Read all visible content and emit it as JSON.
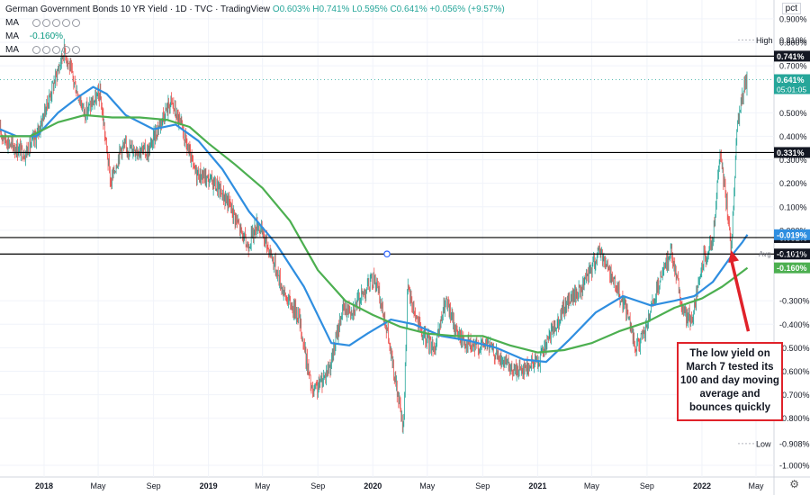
{
  "header": {
    "title": "German Government Bonds 10 YR Yield · 1D · TVC · TradingView",
    "ohlc": "O0.603% H0.741% L0.595% C0.641% +0.056% (+9.57%)",
    "ma1_label": "MA",
    "ma1_value": "",
    "ma2_label": "MA",
    "ma2_value": "-0.160%",
    "ma3_label": "MA",
    "ma3_value": ""
  },
  "axis_unit": "pct",
  "annotation": "The low yield on March 7 tested its 100 and  day moving average and bounces quickly",
  "colors": {
    "up": "#26a69a",
    "down": "#ef5350",
    "ma_blue": "#2f8ee0",
    "ma_green": "#4caf50",
    "level_line": "#000000",
    "arrow": "#e0222a"
  },
  "chart_data": {
    "type": "line",
    "title": "German Government Bonds 10 YR Yield",
    "ylabel": "pct",
    "ylim": [
      -1.05,
      0.98
    ],
    "y_ticks": [
      0.9,
      0.8,
      0.7,
      0.5,
      0.4,
      0.3,
      0.2,
      0.1,
      0.0,
      -0.3,
      -0.4,
      -0.5,
      -0.6,
      -0.7,
      -0.8,
      -1.0
    ],
    "y_tick_labels": [
      "0.900%",
      "0.800%",
      "0.700%",
      "0.500%",
      "0.400%",
      "0.300%",
      "0.200%",
      "0.100%",
      "0.000%",
      "-0.300%",
      "-0.400%",
      "-0.500%",
      "-0.600%",
      "-0.700%",
      "-0.800%",
      "-1.000%"
    ],
    "x_ticks": [
      {
        "label": "2018",
        "date": "2018-01-01",
        "bold": true
      },
      {
        "label": "May",
        "date": "2018-05-01"
      },
      {
        "label": "Sep",
        "date": "2018-09-01"
      },
      {
        "label": "2019",
        "date": "2019-01-01",
        "bold": true
      },
      {
        "label": "May",
        "date": "2019-05-01"
      },
      {
        "label": "Sep",
        "date": "2019-09-01"
      },
      {
        "label": "2020",
        "date": "2020-01-01",
        "bold": true
      },
      {
        "label": "May",
        "date": "2020-05-01"
      },
      {
        "label": "Sep",
        "date": "2020-09-01"
      },
      {
        "label": "2021",
        "date": "2021-01-01",
        "bold": true
      },
      {
        "label": "May",
        "date": "2021-05-01"
      },
      {
        "label": "Sep",
        "date": "2021-09-01"
      },
      {
        "label": "2022",
        "date": "2022-01-01",
        "bold": true
      },
      {
        "label": "May",
        "date": "2022-05-01"
      }
    ],
    "x_range": [
      "2017-09-25",
      "2022-06-10"
    ],
    "price_path": [
      [
        "2017-09-25",
        0.42
      ],
      [
        "2017-10-20",
        0.36
      ],
      [
        "2017-11-20",
        0.33
      ],
      [
        "2017-12-15",
        0.4
      ],
      [
        "2018-01-10",
        0.55
      ],
      [
        "2018-02-15",
        0.77
      ],
      [
        "2018-03-10",
        0.62
      ],
      [
        "2018-04-01",
        0.5
      ],
      [
        "2018-05-05",
        0.58
      ],
      [
        "2018-05-29",
        0.2
      ],
      [
        "2018-06-20",
        0.35
      ],
      [
        "2018-07-20",
        0.35
      ],
      [
        "2018-08-20",
        0.33
      ],
      [
        "2018-09-20",
        0.48
      ],
      [
        "2018-10-10",
        0.55
      ],
      [
        "2018-11-01",
        0.44
      ],
      [
        "2018-12-01",
        0.25
      ],
      [
        "2019-01-15",
        0.2
      ],
      [
        "2019-02-20",
        0.1
      ],
      [
        "2019-03-28",
        -0.07
      ],
      [
        "2019-04-20",
        0.03
      ],
      [
        "2019-05-20",
        -0.1
      ],
      [
        "2019-06-20",
        -0.28
      ],
      [
        "2019-07-20",
        -0.36
      ],
      [
        "2019-08-20",
        -0.7
      ],
      [
        "2019-09-10",
        -0.64
      ],
      [
        "2019-10-01",
        -0.56
      ],
      [
        "2019-10-25",
        -0.34
      ],
      [
        "2019-11-20",
        -0.33
      ],
      [
        "2019-12-20",
        -0.24
      ],
      [
        "2020-01-05",
        -0.2
      ],
      [
        "2020-01-30",
        -0.4
      ],
      [
        "2020-03-09",
        -0.85
      ],
      [
        "2020-03-18",
        -0.25
      ],
      [
        "2020-04-20",
        -0.45
      ],
      [
        "2020-05-20",
        -0.5
      ],
      [
        "2020-06-10",
        -0.3
      ],
      [
        "2020-07-10",
        -0.45
      ],
      [
        "2020-08-10",
        -0.5
      ],
      [
        "2020-09-10",
        -0.48
      ],
      [
        "2020-10-10",
        -0.55
      ],
      [
        "2020-11-05",
        -0.6
      ],
      [
        "2020-12-10",
        -0.58
      ],
      [
        "2021-01-05",
        -0.55
      ],
      [
        "2021-02-10",
        -0.4
      ],
      [
        "2021-03-10",
        -0.3
      ],
      [
        "2021-04-10",
        -0.25
      ],
      [
        "2021-05-19",
        -0.08
      ],
      [
        "2021-06-20",
        -0.22
      ],
      [
        "2021-07-20",
        -0.35
      ],
      [
        "2021-08-05",
        -0.5
      ],
      [
        "2021-08-25",
        -0.45
      ],
      [
        "2021-09-20",
        -0.28
      ],
      [
        "2021-10-25",
        -0.08
      ],
      [
        "2021-11-20",
        -0.35
      ],
      [
        "2021-12-10",
        -0.38
      ],
      [
        "2022-01-05",
        -0.12
      ],
      [
        "2022-01-25",
        -0.05
      ],
      [
        "2022-02-10",
        0.32
      ],
      [
        "2022-02-20",
        0.2
      ],
      [
        "2022-03-07",
        -0.08
      ],
      [
        "2022-03-20",
        0.45
      ],
      [
        "2022-04-05",
        0.6
      ],
      [
        "2022-04-12",
        0.641
      ]
    ],
    "series": [
      {
        "name": "MA 100 (blue)",
        "color": "#2f8ee0",
        "points": [
          [
            "2017-09-25",
            0.43
          ],
          [
            "2017-11-01",
            0.4
          ],
          [
            "2017-12-15",
            0.4
          ],
          [
            "2018-02-01",
            0.5
          ],
          [
            "2018-03-20",
            0.57
          ],
          [
            "2018-04-20",
            0.61
          ],
          [
            "2018-05-20",
            0.58
          ],
          [
            "2018-07-01",
            0.49
          ],
          [
            "2018-09-01",
            0.43
          ],
          [
            "2018-10-20",
            0.45
          ],
          [
            "2018-12-10",
            0.38
          ],
          [
            "2019-02-01",
            0.26
          ],
          [
            "2019-04-01",
            0.08
          ],
          [
            "2019-06-01",
            -0.06
          ],
          [
            "2019-08-01",
            -0.24
          ],
          [
            "2019-10-01",
            -0.48
          ],
          [
            "2019-11-10",
            -0.49
          ],
          [
            "2019-12-20",
            -0.44
          ],
          [
            "2020-02-10",
            -0.38
          ],
          [
            "2020-04-01",
            -0.4
          ],
          [
            "2020-06-01",
            -0.45
          ],
          [
            "2020-08-01",
            -0.47
          ],
          [
            "2020-10-01",
            -0.5
          ],
          [
            "2020-12-01",
            -0.55
          ],
          [
            "2021-01-20",
            -0.56
          ],
          [
            "2021-03-10",
            -0.47
          ],
          [
            "2021-05-10",
            -0.35
          ],
          [
            "2021-07-10",
            -0.28
          ],
          [
            "2021-09-10",
            -0.32
          ],
          [
            "2021-11-01",
            -0.3
          ],
          [
            "2021-12-15",
            -0.28
          ],
          [
            "2022-01-25",
            -0.22
          ],
          [
            "2022-03-07",
            -0.11
          ],
          [
            "2022-04-01",
            -0.05
          ],
          [
            "2022-04-12",
            -0.019
          ]
        ]
      },
      {
        "name": "MA 200 (green)",
        "color": "#4caf50",
        "points": [
          [
            "2017-09-25",
            0.4
          ],
          [
            "2017-12-01",
            0.4
          ],
          [
            "2018-02-01",
            0.46
          ],
          [
            "2018-04-01",
            0.49
          ],
          [
            "2018-06-01",
            0.48
          ],
          [
            "2018-08-01",
            0.48
          ],
          [
            "2018-10-01",
            0.47
          ],
          [
            "2018-11-20",
            0.44
          ],
          [
            "2019-01-01",
            0.37
          ],
          [
            "2019-03-01",
            0.28
          ],
          [
            "2019-05-01",
            0.18
          ],
          [
            "2019-07-01",
            0.04
          ],
          [
            "2019-09-01",
            -0.17
          ],
          [
            "2019-11-01",
            -0.3
          ],
          [
            "2020-01-01",
            -0.36
          ],
          [
            "2020-03-01",
            -0.41
          ],
          [
            "2020-05-01",
            -0.44
          ],
          [
            "2020-07-01",
            -0.45
          ],
          [
            "2020-09-01",
            -0.45
          ],
          [
            "2020-11-01",
            -0.49
          ],
          [
            "2021-01-01",
            -0.52
          ],
          [
            "2021-03-01",
            -0.51
          ],
          [
            "2021-05-01",
            -0.48
          ],
          [
            "2021-07-01",
            -0.43
          ],
          [
            "2021-09-01",
            -0.39
          ],
          [
            "2021-11-01",
            -0.33
          ],
          [
            "2022-01-01",
            -0.29
          ],
          [
            "2022-02-15",
            -0.24
          ],
          [
            "2022-03-15",
            -0.2
          ],
          [
            "2022-04-12",
            -0.16
          ]
        ]
      }
    ],
    "levels": [
      {
        "value": 0.741,
        "label": "0.741%",
        "style": "line"
      },
      {
        "value": 0.331,
        "label": "0.331%",
        "style": "line"
      },
      {
        "value": -0.031,
        "label": "-0.031%",
        "style": "line"
      },
      {
        "value": -0.101,
        "label": "-0.101%",
        "style": "line"
      }
    ],
    "price_tags": [
      {
        "value": 0.81,
        "text": "High",
        "value_text": "0.810%"
      },
      {
        "value": 0.641,
        "text": "0.641%",
        "sub": "05:01:05"
      },
      {
        "value": -0.019,
        "text": "-0.019%"
      },
      {
        "value": -0.099,
        "text": "Avg",
        "value_text": "-0.099%"
      },
      {
        "value": -0.16,
        "text": "-0.160%"
      },
      {
        "value": -0.908,
        "text": "Low",
        "value_text": "-0.908%"
      }
    ],
    "arrow": {
      "from_date": "2022-04-14",
      "from_value": -0.43,
      "to_date": "2022-03-07",
      "to_value": -0.085
    }
  }
}
